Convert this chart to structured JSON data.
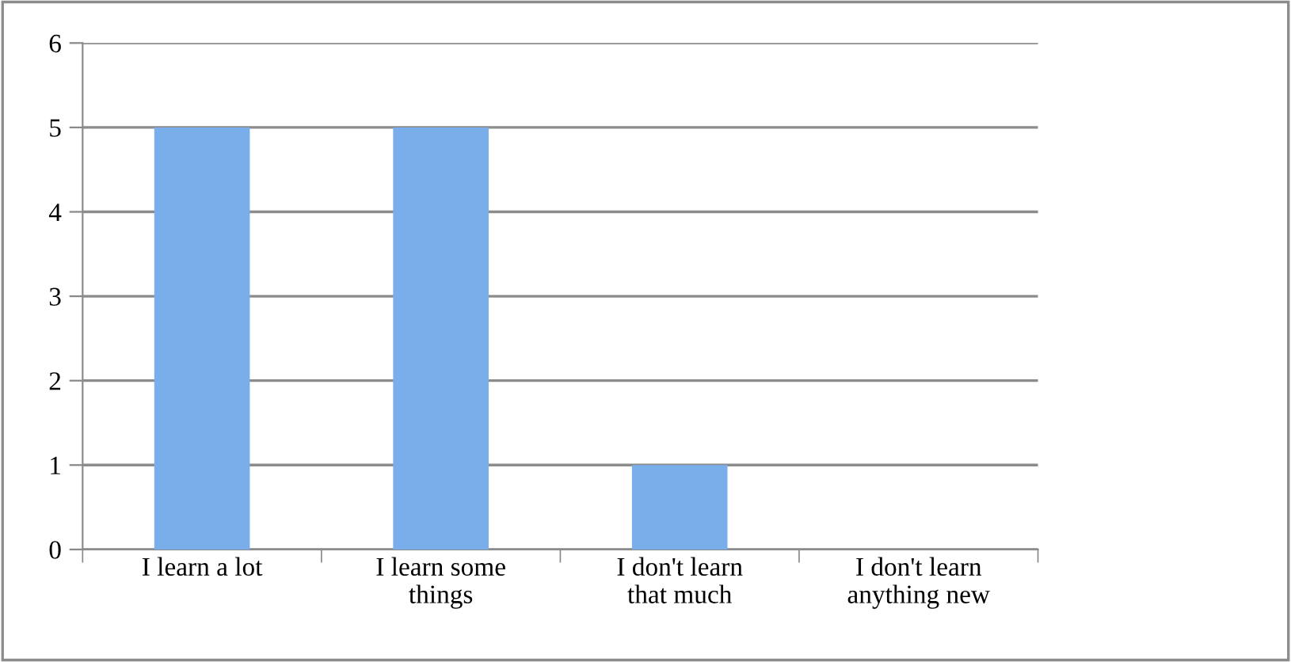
{
  "chart_data": {
    "type": "bar",
    "categories": [
      "I learn a lot",
      "I learn some\nthings",
      "I don't learn\nthat much",
      "I don't learn\nanything new"
    ],
    "values": [
      5,
      5,
      1,
      0
    ],
    "color": "#7aaeea",
    "ylim": [
      0,
      6
    ],
    "yticks": [
      0,
      1,
      2,
      3,
      4,
      5,
      6
    ],
    "grid": "y",
    "legend": false
  }
}
